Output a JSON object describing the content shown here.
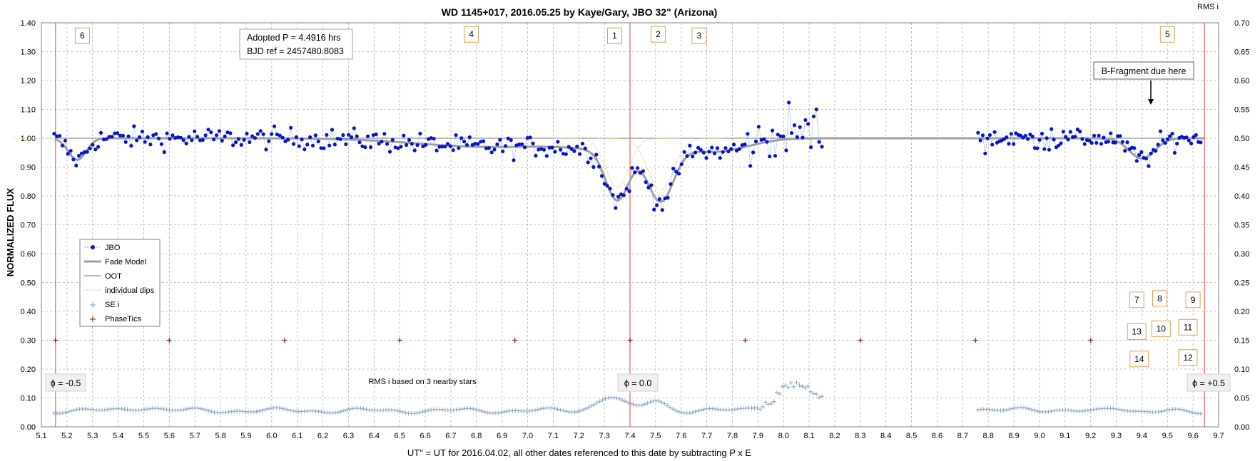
{
  "chart_data": {
    "type": "scatter",
    "title": "WD 1145+017,  2016.05.25  by Kaye/Gary, JBO 32\" (Arizona)",
    "xlabel": "UT\" = UT for 2016.04.02, all other dates referenced to this date by subtracting P x E",
    "ylabel": "NORMALIZED FLUX",
    "y2label": "RMS i",
    "xlim": [
      5.1,
      9.7
    ],
    "ylim": [
      0.0,
      1.4
    ],
    "y2lim": [
      0.0,
      0.7
    ],
    "xticks": [
      "5.1",
      "5.2",
      "5.3",
      "5.4",
      "5.5",
      "5.6",
      "5.7",
      "5.8",
      "5.9",
      "6.0",
      "6.1",
      "6.2",
      "6.3",
      "6.4",
      "6.5",
      "6.6",
      "6.7",
      "6.8",
      "6.9",
      "7.0",
      "7.1",
      "7.2",
      "7.3",
      "7.4",
      "7.5",
      "7.6",
      "7.7",
      "7.8",
      "7.9",
      "8.0",
      "8.1",
      "8.2",
      "8.3",
      "8.4",
      "8.5",
      "8.6",
      "8.7",
      "8.8",
      "8.9",
      "9.0",
      "9.1",
      "9.2",
      "9.3",
      "9.4",
      "9.5",
      "9.6",
      "9.7"
    ],
    "yticks": [
      "0.00",
      "0.10",
      "0.20",
      "0.30",
      "0.40",
      "0.50",
      "0.60",
      "0.70",
      "0.80",
      "0.90",
      "1.00",
      "1.10",
      "1.20",
      "1.30",
      "1.40"
    ],
    "y2ticks": [
      "0.00",
      "0.05",
      "0.10",
      "0.15",
      "0.20",
      "0.25",
      "0.30",
      "0.35",
      "0.40",
      "0.45",
      "0.50",
      "0.55",
      "0.60",
      "0.65",
      "0.70"
    ],
    "grid": true,
    "legend_position": "left-middle",
    "legend": [
      {
        "label": "JBO",
        "style": "blue-dots-dashed-line"
      },
      {
        "label": "Fade Model",
        "style": "thick-gray-line"
      },
      {
        "label": "OOT",
        "style": "thin-gray-line"
      },
      {
        "label": "individual dips",
        "style": "dotted-yellow-line"
      },
      {
        "label": "SE i",
        "style": "light-blue-plus"
      },
      {
        "label": "PhaseTics",
        "style": "dark-red-plus"
      }
    ],
    "colors": {
      "jbo": "#0a14c8",
      "jbo_line": "#7fa9d9",
      "fade_model": "#a0a0a0",
      "oot": "#7d7d7d",
      "individual_dips": "#d8d68a",
      "se_i": "#8ea6c4",
      "phase_tics": "#8b1a1a",
      "phase_lines": "#f08080",
      "label_border": "#e0a050"
    },
    "phase_lines_x": [
      5.155,
      7.4,
      9.645
    ],
    "phase_tics": {
      "x": [
        5.155,
        5.6,
        6.05,
        6.5,
        6.95,
        7.4,
        7.85,
        8.3,
        8.75,
        9.2
      ],
      "y": 0.3
    },
    "oot_level": 1.0,
    "individual_dips": [
      {
        "center": 5.24,
        "depth": 0.075,
        "width": 0.035
      },
      {
        "center": 7.35,
        "depth": 0.17,
        "width": 0.045
      },
      {
        "center": 7.52,
        "depth": 0.18,
        "width": 0.05
      },
      {
        "center": 9.4,
        "depth": 0.07,
        "width": 0.05
      }
    ],
    "broad_dips": [
      {
        "center": 6.85,
        "depth": 0.03,
        "width": 0.28
      },
      {
        "center": 7.4,
        "depth": 0.04,
        "width": 0.18
      },
      {
        "center": 7.75,
        "depth": 0.04,
        "width": 0.12
      }
    ],
    "se_i_bands": [
      {
        "range": [
          5.15,
          8.15
        ],
        "base": 0.056,
        "bumps": [
          {
            "c": 5.5,
            "a": 0.012,
            "w": 0.05
          },
          {
            "c": 7.32,
            "a": 0.05,
            "w": 0.05
          },
          {
            "c": 7.5,
            "a": 0.035,
            "w": 0.04
          },
          {
            "c": 8.05,
            "a": 0.09,
            "w": 0.08
          }
        ]
      },
      {
        "range": [
          8.76,
          9.63
        ],
        "base": 0.052,
        "bumps": [
          {
            "c": 8.95,
            "a": 0.015,
            "w": 0.06
          },
          {
            "c": 9.3,
            "a": 0.018,
            "w": 0.04
          }
        ]
      }
    ],
    "data_segments": [
      {
        "range": [
          5.15,
          8.15
        ],
        "n": 280
      },
      {
        "range": [
          8.76,
          9.63
        ],
        "n": 95
      }
    ]
  },
  "annotations": {
    "info_line1": "Adopted P = 4.4916  hrs",
    "info_line2": "BJD ref = 2457480.8083",
    "rms_note": "RMS i based on 3 nearby stars",
    "phase_minus": "ϕ = -0.5",
    "phase_zero": "ϕ = 0.0",
    "phase_plus": "ϕ = +0.5",
    "b_fragment": "B-Fragment due here"
  },
  "dip_labels": [
    {
      "text": "6",
      "x": 5.26,
      "y": 1.355
    },
    {
      "text": "4",
      "x": 6.78,
      "y": 1.36
    },
    {
      "text": "1",
      "x": 7.34,
      "y": 1.355
    },
    {
      "text": "2",
      "x": 7.51,
      "y": 1.36
    },
    {
      "text": "3",
      "x": 7.67,
      "y": 1.355
    },
    {
      "text": "5",
      "x": 9.5,
      "y": 1.36
    },
    {
      "text": "7",
      "x": 9.38,
      "y": 0.44
    },
    {
      "text": "8",
      "x": 9.47,
      "y": 0.445
    },
    {
      "text": "9",
      "x": 9.6,
      "y": 0.44
    },
    {
      "text": "10",
      "x": 9.475,
      "y": 0.34
    },
    {
      "text": "11",
      "x": 9.58,
      "y": 0.345
    },
    {
      "text": "13",
      "x": 9.38,
      "y": 0.33
    },
    {
      "text": "14",
      "x": 9.39,
      "y": 0.235
    },
    {
      "text": "12",
      "x": 9.58,
      "y": 0.24
    }
  ]
}
